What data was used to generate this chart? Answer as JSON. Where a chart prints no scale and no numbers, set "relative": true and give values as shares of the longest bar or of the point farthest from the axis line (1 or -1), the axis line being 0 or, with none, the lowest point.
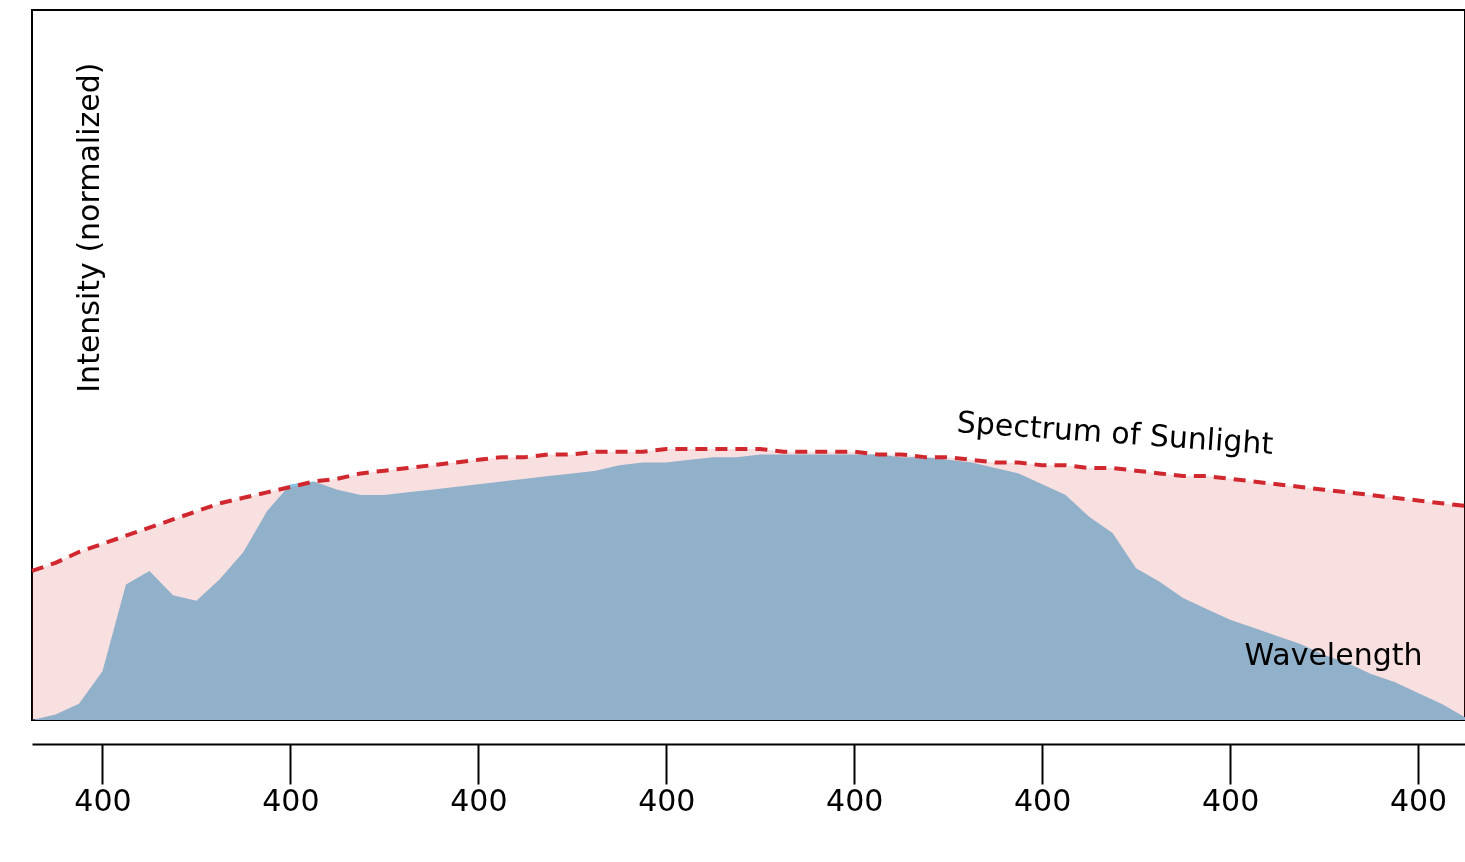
{
  "chart_data": {
    "type": "area",
    "relative": true,
    "xlabel": "Wavelength",
    "ylabel": "Intensity (normalized)",
    "categories": [
      null,
      null,
      null,
      "400",
      null,
      null,
      null,
      null,
      null,
      null,
      null,
      "400",
      null,
      null,
      null,
      null,
      null,
      null,
      null,
      "400",
      null,
      null,
      null,
      null,
      null,
      null,
      null,
      "400",
      null,
      null,
      null,
      null,
      null,
      null,
      null,
      "400",
      null,
      null,
      null,
      null,
      null,
      null,
      null,
      "400",
      null,
      null,
      null,
      null,
      null,
      null,
      null,
      "400",
      null,
      null,
      null,
      null,
      null,
      null,
      null,
      "400",
      null,
      null
    ],
    "series": [
      {
        "color": "#86c9e6",
        "values": [
          0,
          0.02,
          0.06,
          0.18,
          0.5,
          0.55,
          0.46,
          0.44,
          0.52,
          0.62,
          0.77,
          0.87,
          0.88,
          0.85,
          0.83,
          0.83,
          0.84,
          0.85,
          0.86,
          0.87,
          0.88,
          0.89,
          0.9,
          0.91,
          0.92,
          0.94,
          0.95,
          0.95,
          0.96,
          0.97,
          0.97,
          0.98,
          0.98,
          0.98,
          0.98,
          0.98,
          0.98,
          0.97,
          0.97,
          0.96,
          0.95,
          0.93,
          0.91,
          0.87,
          0.83,
          0.75,
          0.69,
          0.56,
          0.51,
          0.45,
          0.41,
          0.37,
          0.34,
          0.31,
          0.28,
          0.24,
          0.21,
          0.17,
          0.14,
          0.1,
          0.06,
          0.01
        ]
      },
      {
        "name": "Spectrum of Sunlight",
        "color": "#d0282e",
        "line_style": "dashed",
        "values": [
          0.55,
          0.58,
          0.62,
          0.65,
          0.68,
          0.71,
          0.74,
          0.77,
          0.8,
          0.82,
          0.84,
          0.86,
          0.88,
          0.89,
          0.91,
          0.92,
          0.93,
          0.94,
          0.95,
          0.96,
          0.97,
          0.97,
          0.98,
          0.98,
          0.99,
          0.99,
          0.99,
          1.0,
          1.0,
          1.0,
          1.0,
          1.0,
          0.99,
          0.99,
          0.99,
          0.99,
          0.98,
          0.98,
          0.97,
          0.97,
          0.96,
          0.95,
          0.95,
          0.94,
          0.94,
          0.93,
          0.93,
          0.92,
          0.91,
          0.9,
          0.9,
          0.89,
          0.88,
          0.87,
          0.86,
          0.85,
          0.84,
          0.83,
          0.82,
          0.81,
          0.8,
          0.79
        ]
      }
    ]
  }
}
